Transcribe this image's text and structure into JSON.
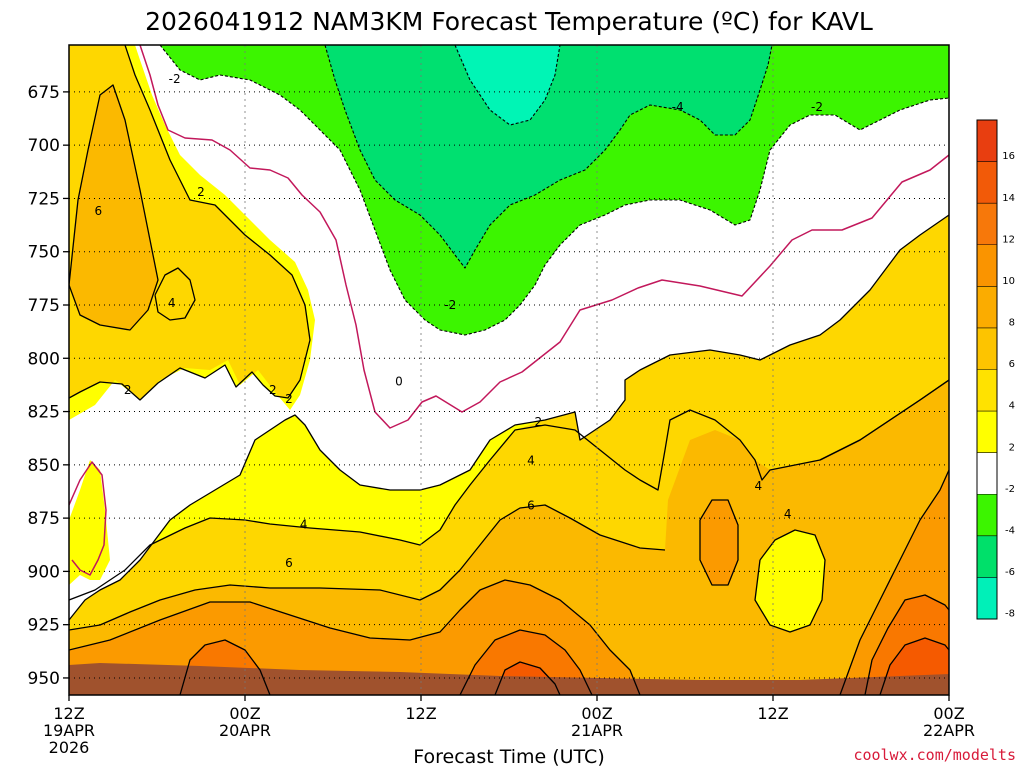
{
  "chart_data": {
    "type": "heatmap",
    "title": "2026041912 NAM3KM Forecast Temperature (ºC) for KAVL",
    "xlabel": "Forecast Time (UTC)",
    "ylabel": "",
    "credit": "coolwx.com/modelts",
    "y_axis": {
      "ticks": [
        675,
        700,
        725,
        750,
        775,
        800,
        825,
        850,
        875,
        900,
        925,
        950
      ],
      "range": [
        653,
        958
      ],
      "inverted": true
    },
    "x_axis": {
      "range_hours": [
        0,
        60
      ],
      "ticks": [
        {
          "hour": 0,
          "line1": "12Z",
          "line2": "19APR",
          "line3": "2026"
        },
        {
          "hour": 12,
          "line1": "00Z",
          "line2": "20APR",
          "line3": ""
        },
        {
          "hour": 24,
          "line1": "12Z",
          "line2": "",
          "line3": ""
        },
        {
          "hour": 36,
          "line1": "00Z",
          "line2": "21APR",
          "line3": ""
        },
        {
          "hour": 48,
          "line1": "12Z",
          "line2": "",
          "line3": ""
        },
        {
          "hour": 60,
          "line1": "00Z",
          "line2": "22APR",
          "line3": ""
        }
      ]
    },
    "grid": true,
    "colorbar": {
      "labels": [
        "16",
        "14",
        "12",
        "10",
        "8",
        "6",
        "4",
        "2",
        "-2",
        "-4",
        "-6",
        "-8"
      ],
      "colors": [
        "#e83e10",
        "#f25a08",
        "#f7780a",
        "#fa9400",
        "#fbac00",
        "#fdc400",
        "#ffe200",
        "#ffff00",
        "#ffffff",
        "#3cf500",
        "#00e06a",
        "#00f0b8"
      ]
    },
    "fills": {
      "t_ge_2": "#ffff00",
      "t_ge_4": "#fed700",
      "t_ge_6": "#fbb900",
      "t_ge_8": "#fb9a00",
      "t_ge_10": "#f97800",
      "t_ge_12": "#f55a00",
      "t_lt_m2": "#3cf500",
      "t_lt_m4": "#00e070",
      "t_lt_m6": "#00f5b5",
      "ground": "#a0522d",
      "zero_line": "#c2185b"
    },
    "contour_labels": [
      {
        "text": "-2",
        "hour": 7.2,
        "p": 669
      },
      {
        "text": "6",
        "hour": 2.0,
        "p": 731
      },
      {
        "text": "2",
        "hour": 9.0,
        "p": 722
      },
      {
        "text": "4",
        "hour": 7.0,
        "p": 774
      },
      {
        "text": "2",
        "hour": 4.0,
        "p": 815
      },
      {
        "text": "2",
        "hour": 13.9,
        "p": 815
      },
      {
        "text": "2",
        "hour": 15.0,
        "p": 819
      },
      {
        "text": "0",
        "hour": 22.5,
        "p": 811
      },
      {
        "text": "-2",
        "hour": 26.0,
        "p": 775
      },
      {
        "text": "-4",
        "hour": 41.5,
        "p": 682
      },
      {
        "text": "-2",
        "hour": 51.0,
        "p": 682
      },
      {
        "text": "2",
        "hour": 32.0,
        "p": 830
      },
      {
        "text": "4",
        "hour": 31.5,
        "p": 848
      },
      {
        "text": "6",
        "hour": 31.5,
        "p": 869
      },
      {
        "text": "4",
        "hour": 16.0,
        "p": 878
      },
      {
        "text": "6",
        "hour": 15.0,
        "p": 896
      },
      {
        "text": "4",
        "hour": 47.0,
        "p": 860
      },
      {
        "text": "4",
        "hour": 49.0,
        "p": 873
      }
    ]
  }
}
